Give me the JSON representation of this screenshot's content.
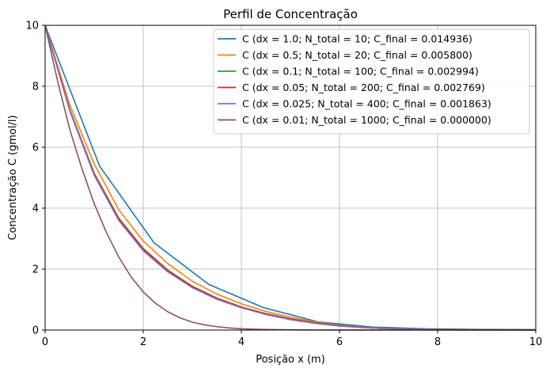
{
  "chart_data": {
    "type": "line",
    "title": "Perfil de Concentração",
    "xlabel": "Posição x (m)",
    "ylabel": "Concentração C (gmol/l)",
    "xlim": [
      0,
      10
    ],
    "ylim": [
      0,
      10
    ],
    "xticks": [
      0,
      2,
      4,
      6,
      8,
      10
    ],
    "yticks": [
      0,
      2,
      4,
      6,
      8,
      10
    ],
    "grid": true,
    "legend_position": "top-right",
    "series": [
      {
        "name": "C (dx = 1.0; N_total = 10; C_final = 0.014936)",
        "color": "#1f77b4",
        "x": [
          0,
          1.111,
          2.222,
          3.333,
          4.444,
          5.556,
          6.667,
          7.778,
          8.889,
          10
        ],
        "y": [
          10,
          5.38,
          2.86,
          1.5,
          0.74,
          0.27,
          0.1,
          0.04,
          0.02,
          0.015
        ]
      },
      {
        "name": "C (dx = 0.5; N_total = 20; C_final = 0.005800)",
        "color": "#ff7f0e",
        "x": [
          0,
          0.5,
          1,
          1.5,
          2,
          2.5,
          3,
          3.5,
          4,
          4.5,
          5,
          5.5,
          6,
          6.5,
          7,
          7.5,
          8,
          8.5,
          9,
          9.5,
          10
        ],
        "y": [
          10,
          7.4,
          5.45,
          3.95,
          2.92,
          2.18,
          1.6,
          1.18,
          0.86,
          0.61,
          0.42,
          0.27,
          0.16,
          0.09,
          0.05,
          0.03,
          0.015,
          0.01,
          0.008,
          0.006,
          0.006
        ]
      },
      {
        "name": "C (dx = 0.1; N_total = 100; C_final = 0.002994)",
        "color": "#2ca02c",
        "x": [
          0,
          0.5,
          1,
          1.5,
          2,
          2.5,
          3,
          3.5,
          4,
          4.5,
          5,
          5.5,
          6,
          6.5,
          7,
          7.5,
          8,
          8.5,
          9,
          9.5,
          10
        ],
        "y": [
          10,
          7.25,
          5.15,
          3.68,
          2.68,
          1.97,
          1.44,
          1.05,
          0.76,
          0.54,
          0.37,
          0.24,
          0.15,
          0.08,
          0.045,
          0.025,
          0.012,
          0.007,
          0.005,
          0.004,
          0.003
        ]
      },
      {
        "name": "C (dx = 0.05; N_total = 200; C_final = 0.002769)",
        "color": "#d62728",
        "x": [
          0,
          0.5,
          1,
          1.5,
          2,
          2.5,
          3,
          3.5,
          4,
          4.5,
          5,
          5.5,
          6,
          6.5,
          7,
          7.5,
          8,
          8.5,
          9,
          9.5,
          10
        ],
        "y": [
          10,
          7.22,
          5.12,
          3.65,
          2.65,
          1.95,
          1.42,
          1.04,
          0.75,
          0.53,
          0.36,
          0.23,
          0.14,
          0.08,
          0.043,
          0.023,
          0.011,
          0.006,
          0.004,
          0.003,
          0.0028
        ]
      },
      {
        "name": "C (dx = 0.025; N_total = 400; C_final = 0.001863)",
        "color": "#9467bd",
        "x": [
          0,
          0.5,
          1,
          1.5,
          2,
          2.5,
          3,
          3.5,
          4,
          4.5,
          5,
          5.5,
          6,
          6.5,
          7,
          7.5,
          8,
          8.5,
          9,
          9.5,
          10
        ],
        "y": [
          10,
          7.2,
          5.08,
          3.6,
          2.6,
          1.91,
          1.39,
          1.01,
          0.73,
          0.51,
          0.34,
          0.22,
          0.13,
          0.075,
          0.04,
          0.02,
          0.01,
          0.005,
          0.003,
          0.002,
          0.0019
        ]
      },
      {
        "name": "C (dx = 0.01; N_total = 1000; C_final = 0.000000)",
        "color": "#8c564b",
        "x": [
          0,
          0.25,
          0.5,
          0.75,
          1,
          1.25,
          1.5,
          1.75,
          2,
          2.25,
          2.5,
          2.75,
          3,
          3.25,
          3.5,
          3.75,
          4,
          4.25,
          4.5,
          5,
          5.5,
          6,
          6.5,
          7,
          8,
          9,
          10
        ],
        "y": [
          10,
          8.2,
          6.6,
          5.3,
          4.15,
          3.2,
          2.4,
          1.75,
          1.25,
          0.88,
          0.6,
          0.4,
          0.26,
          0.17,
          0.11,
          0.07,
          0.045,
          0.028,
          0.017,
          0.007,
          0.003,
          0.001,
          0.0005,
          0.0002,
          0,
          0,
          0
        ]
      }
    ]
  }
}
